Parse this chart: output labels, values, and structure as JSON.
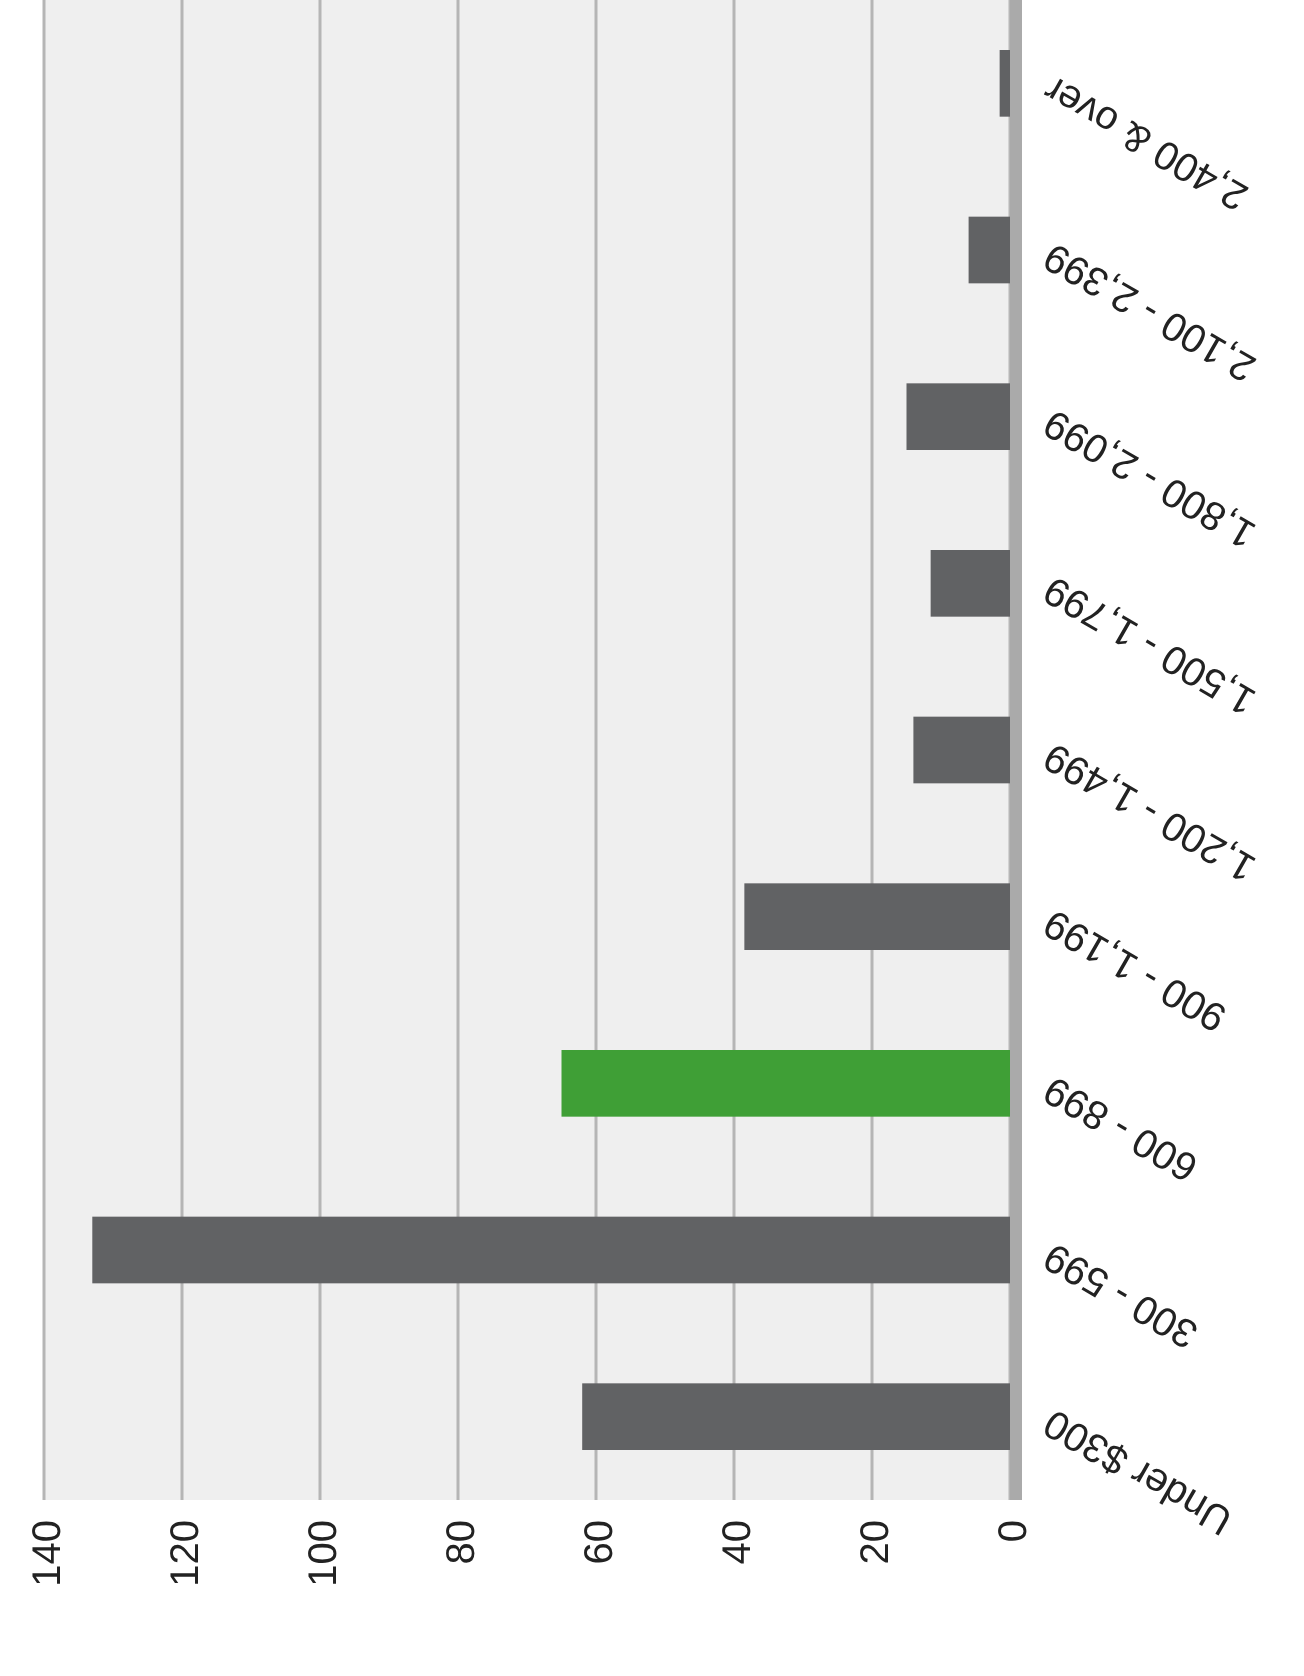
{
  "chart_data": {
    "type": "bar",
    "orientation": "horizontal",
    "categories": [
      "2,400 & over",
      "2,100 - 2,399",
      "1,800 - 2,099",
      "1,500 - 1,799",
      "1,200 - 1,499",
      "900 - 1,199",
      "600 - 899",
      "300 - 599",
      "Under $300"
    ],
    "values": [
      1.5,
      6,
      15,
      11.5,
      14,
      38.5,
      65,
      133,
      62
    ],
    "colors": [
      "#616264",
      "#616264",
      "#616264",
      "#616264",
      "#616264",
      "#616264",
      "#3f9f36",
      "#616264",
      "#616264"
    ],
    "xlim": [
      140,
      0
    ],
    "xticks": [
      0,
      20,
      40,
      60,
      80,
      100,
      120,
      140
    ],
    "grid": "x"
  }
}
